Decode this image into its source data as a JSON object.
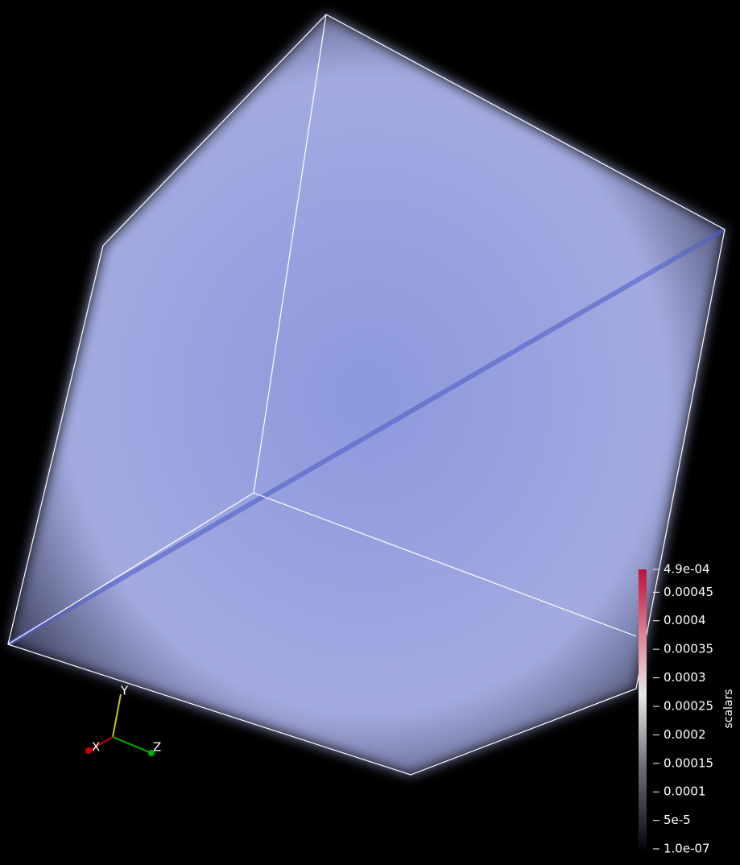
{
  "orientation_axes": {
    "x": "X",
    "y": "Y",
    "z": "Z"
  },
  "color_legend": {
    "title": "scalars",
    "range": [
      1e-07,
      0.00049
    ],
    "ticks": [
      {
        "value": 0.00049,
        "label": "4.9e-04"
      },
      {
        "value": 0.00045,
        "label": "0.00045"
      },
      {
        "value": 0.0004,
        "label": "0.0004"
      },
      {
        "value": 0.00035,
        "label": "0.00035"
      },
      {
        "value": 0.0003,
        "label": "0.0003"
      },
      {
        "value": 0.00025,
        "label": "0.00025"
      },
      {
        "value": 0.0002,
        "label": "0.0002"
      },
      {
        "value": 0.00015,
        "label": "0.00015"
      },
      {
        "value": 0.0001,
        "label": "0.0001"
      },
      {
        "value": 5e-05,
        "label": "5e-5"
      },
      {
        "value": 1e-07,
        "label": "1.0e-07"
      }
    ]
  }
}
